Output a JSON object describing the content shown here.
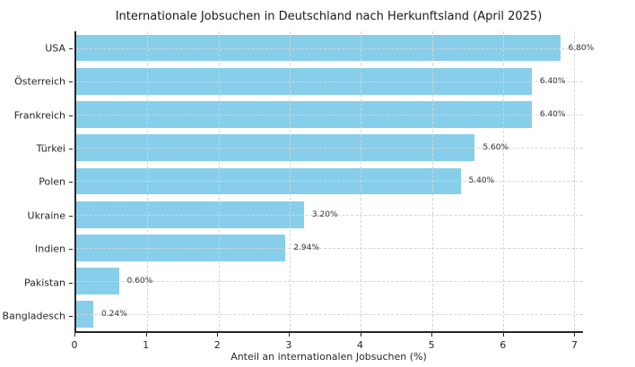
{
  "chart_data": {
    "type": "bar",
    "orientation": "horizontal",
    "title": "Internationale Jobsuchen in Deutschland nach Herkunftsland (April 2025)",
    "xlabel": "Anteil an internationalen Jobsuchen (%)",
    "ylabel": "",
    "categories": [
      "USA",
      "Österreich",
      "Frankreich",
      "Türkei",
      "Polen",
      "Ukraine",
      "Indien",
      "Pakistan",
      "Bangladesch"
    ],
    "values": [
      6.8,
      6.4,
      6.4,
      5.6,
      5.4,
      3.2,
      2.94,
      0.6,
      0.24
    ],
    "value_labels": [
      "6.80%",
      "6.40%",
      "6.40%",
      "5.60%",
      "5.40%",
      "3.20%",
      "2.94%",
      "0.60%",
      "0.24%"
    ],
    "xlim": [
      0,
      7.12
    ],
    "xticks": [
      0,
      1,
      2,
      3,
      4,
      5,
      6,
      7
    ],
    "grid": true,
    "grid_style": "dashed",
    "legend": "none",
    "bar_color": "#87CEEB",
    "axis_color": "#262626",
    "grid_color": "#d4d4d4",
    "text_color": "#262626",
    "background_color": "#ffffff"
  }
}
